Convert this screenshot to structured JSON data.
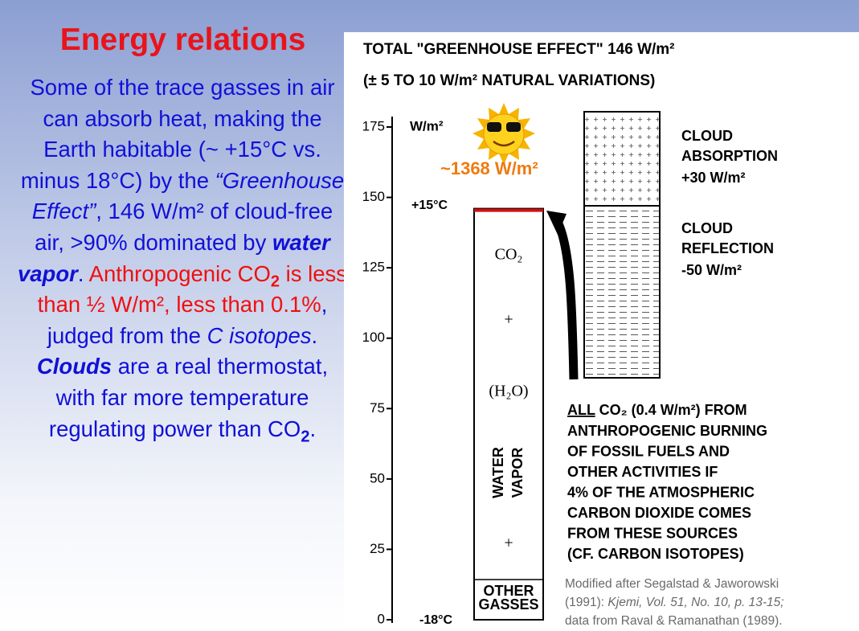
{
  "left": {
    "title": "Energy relations",
    "runs": [
      "Some of the trace gasses in air can absorb heat, making the Earth habitable (~ +15°C vs. minus 18°C) by the ",
      "“Greenhouse Effect”",
      ", 146 W/m² of cloud-free air, >90% dominated by ",
      "water vapor",
      ".",
      " Anthropogenic CO",
      "2",
      " is less than ½ W/m², less than 0.1%",
      ", judged from the ",
      "C isotopes",
      ". ",
      "Clouds",
      " are a real thermostat, with far more temperature regulating power than CO",
      "2",
      "."
    ]
  },
  "diagram": {
    "header": [
      "TOTAL \"GREENHOUSE EFFECT\" 146 W/m²",
      "(± 5 TO 10 W/m² NATURAL VARIATIONS)"
    ],
    "unit": "W/m²",
    "ylim": [
      0,
      175
    ],
    "yticks": [
      0,
      25,
      50,
      75,
      100,
      125,
      150,
      175
    ],
    "greenhouse_total": 146,
    "top_temp": "+15°C",
    "bottom_temp": "-18°C",
    "solar": "~1368 W/m²",
    "bar_labels": [
      "CO₂",
      "+",
      "(H₂O)",
      "+"
    ],
    "water_vapor": [
      "WATER",
      "VAPOR"
    ],
    "other_gasses": [
      "OTHER",
      "GASSES"
    ],
    "cloud_absorption": [
      "CLOUD",
      "ABSORPTION",
      "+30  W/m²"
    ],
    "cloud_reflection": [
      "CLOUD",
      "REFLECTION",
      "-50  W/m²"
    ],
    "note": [
      "ALL",
      "  CO₂ (0.4 W/m²) FROM",
      "ANTHROPOGENIC BURNING",
      "OF FOSSIL FUELS AND",
      "OTHER ACTIVITIES IF",
      "4% OF THE ATMOSPHERIC",
      "CARBON DIOXIDE COMES",
      "FROM THESE SOURCES",
      "(CF. CARBON ISOTOPES)"
    ],
    "credit": [
      "Modified after Segalstad & Jaworowski",
      "(1991): ",
      "Kjemi, Vol. 51, No. 10, p. 13-15;",
      "data from Raval & Ramanathan (1989)."
    ]
  }
}
